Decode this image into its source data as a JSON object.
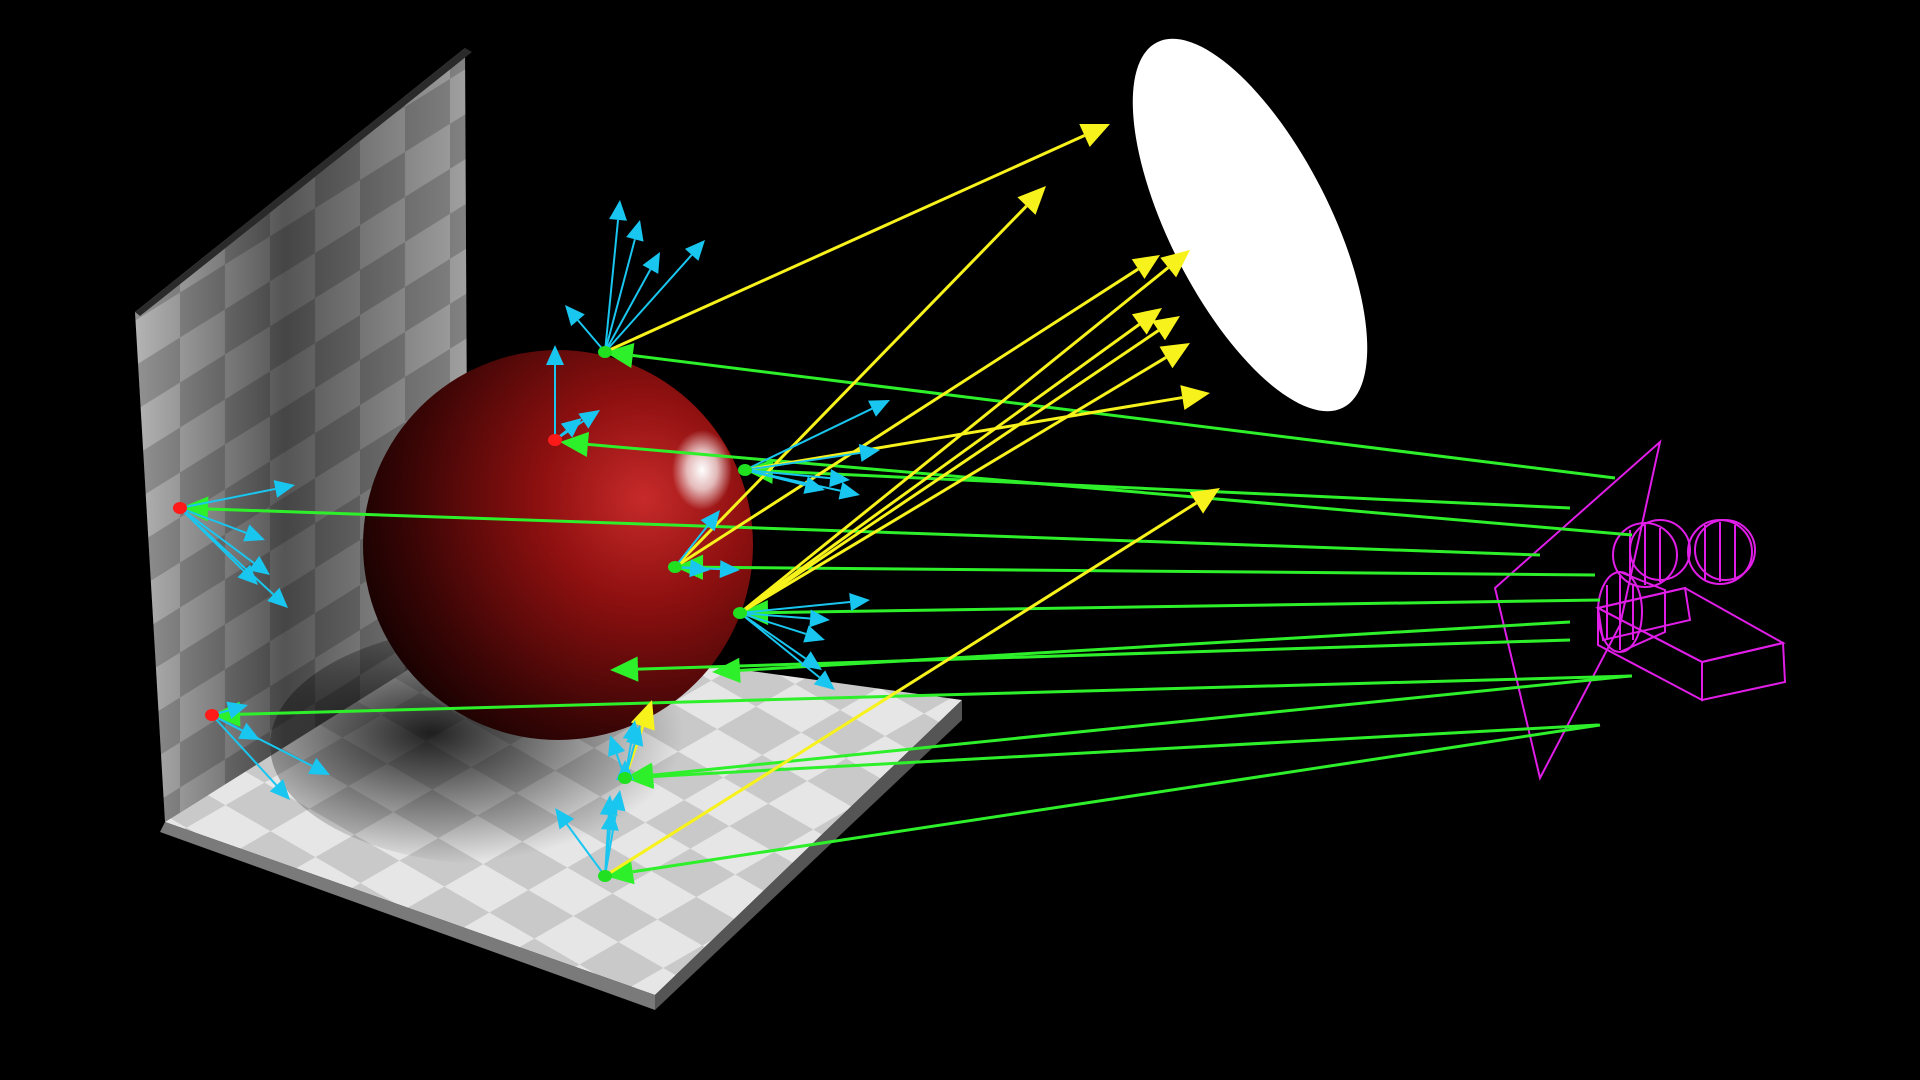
{
  "colors": {
    "background": "#000000",
    "camera_ray": "#2ef02a",
    "shadow_ray": "#f7f21c",
    "secondary_ray": "#19c6ef",
    "camera": "#e01ee8",
    "light": "#ffffff",
    "sphere": "#8c0d0d",
    "lit_hit": "#20e020",
    "shadowed_hit": "#ff1a1a"
  },
  "elements": {
    "light": "area-light-ellipse",
    "camera": "camera-icon",
    "sphere": "red-glossy-sphere",
    "floor": "checker-floor-plane",
    "wall": "checker-wall-plane"
  }
}
